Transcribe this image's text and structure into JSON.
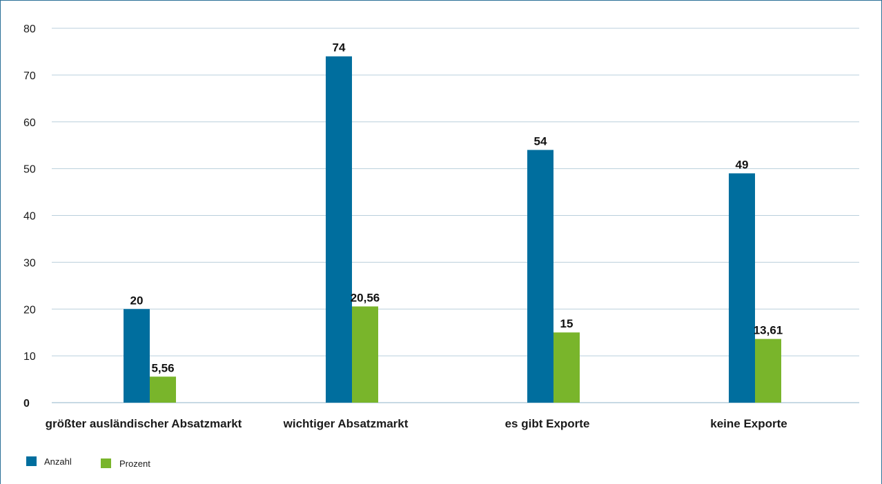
{
  "chart_data": {
    "type": "bar",
    "categories": [
      "größter ausländischer Absatzmarkt",
      "wichtiger Absatzmarkt",
      "es gibt Exporte",
      "keine Exporte"
    ],
    "series": [
      {
        "name": "Anzahl",
        "values": [
          20,
          74,
          54,
          49
        ],
        "labels": [
          "20",
          "74",
          "54",
          "49"
        ],
        "color": "#006e9e"
      },
      {
        "name": "Prozent",
        "values": [
          5.56,
          20.56,
          15,
          13.61
        ],
        "labels": [
          "5,56",
          "20,56",
          "15",
          "13,61"
        ],
        "color": "#79b52b"
      }
    ],
    "ylim": [
      0,
      80
    ],
    "yticks": [
      0,
      10,
      20,
      30,
      40,
      50,
      60,
      70,
      80
    ],
    "grid": true,
    "legend_position": "bottom-left",
    "title": "",
    "xlabel": "",
    "ylabel": ""
  },
  "colors": {
    "frame": "#2a6f97",
    "grid": "#b9cfdc"
  }
}
